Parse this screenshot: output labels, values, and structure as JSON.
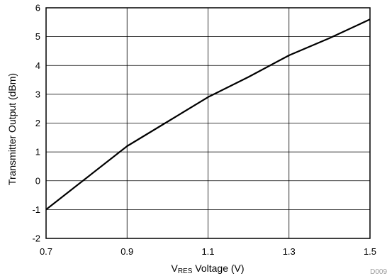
{
  "chart_data": {
    "type": "line",
    "title": "",
    "xlabel": {
      "main": "V",
      "subscript": "RES",
      "rest": " Voltage (V)"
    },
    "ylabel": "Transmitter Output (dBm)",
    "xlim": [
      0.7,
      1.5
    ],
    "ylim": [
      -2,
      6
    ],
    "x_ticks": [
      "0.7",
      "0.9",
      "1.1",
      "1.3",
      "1.5"
    ],
    "y_ticks": [
      "6",
      "5",
      "4",
      "3",
      "2",
      "1",
      "0",
      "-1",
      "-2"
    ],
    "grid": true,
    "legend": "none",
    "series": [
      {
        "color": "#000000",
        "x": [
          0.7,
          0.8,
          0.9,
          1.0,
          1.1,
          1.2,
          1.3,
          1.4,
          1.5
        ],
        "y": [
          -1.0,
          0.1,
          1.2,
          2.05,
          2.9,
          3.6,
          4.35,
          4.95,
          5.6
        ]
      }
    ],
    "footnote": "D009"
  }
}
